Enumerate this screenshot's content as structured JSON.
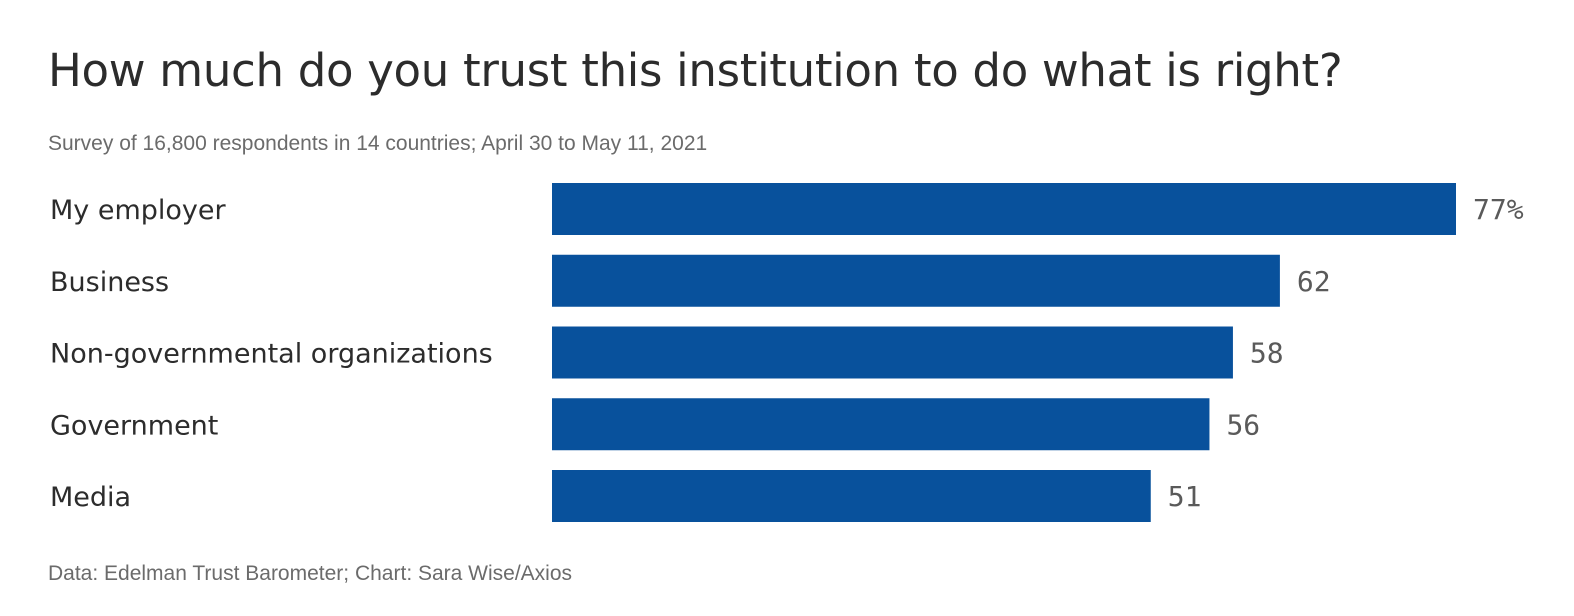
{
  "header": {
    "title": "How much do you trust this institution to do what is right?",
    "subtitle": "Survey of 16,800 respondents in 14 countries; April 30 to May 11, 2021"
  },
  "footer": {
    "source": "Data: Edelman Trust Barometer; Chart: Sara Wise/Axios"
  },
  "colors": {
    "bar": "#08519c"
  },
  "chart_data": {
    "type": "bar",
    "orientation": "horizontal",
    "title": "How much do you trust this institution to do what is right?",
    "subtitle": "Survey of 16,800 respondents in 14 countries; April 30 to May 11, 2021",
    "categories": [
      "My employer",
      "Business",
      "Non-governmental organizations",
      "Government",
      "Media"
    ],
    "values": [
      77,
      62,
      58,
      56,
      51
    ],
    "value_labels": [
      "77%",
      "62",
      "58",
      "56",
      "51"
    ],
    "xlim": [
      0,
      77
    ],
    "grid": false,
    "legend": "none"
  }
}
